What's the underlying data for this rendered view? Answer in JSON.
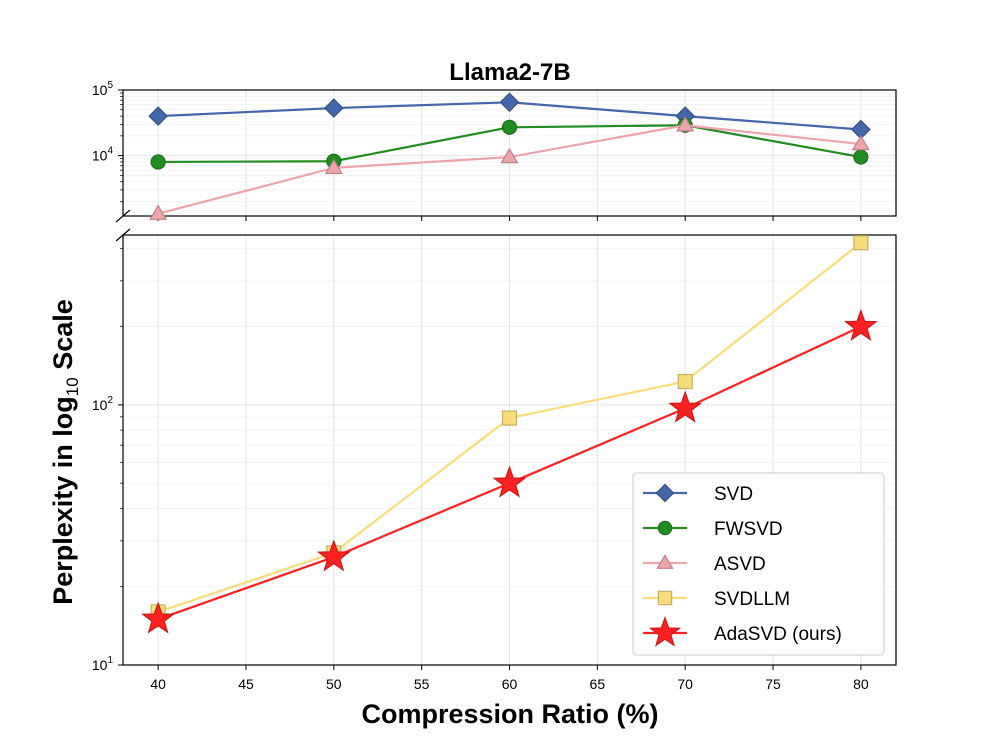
{
  "chart_data": {
    "type": "line",
    "title": "Llama2-7B",
    "xlabel": "Compression Ratio (%)",
    "ylabel_prefix": "Perplexity in log",
    "ylabel_sub": "10",
    "ylabel_suffix": " Scale",
    "x": [
      40,
      50,
      60,
      70,
      80
    ],
    "x_ticks": [
      "40",
      "45",
      "50",
      "55",
      "60",
      "65",
      "70",
      "75",
      "80"
    ],
    "xlim": [
      38,
      82
    ],
    "y_scale": "log",
    "broken_axis": {
      "top_ylim": [
        1200,
        100000
      ],
      "bottom_ylim": [
        10,
        450
      ],
      "top_tick_labels": [
        {
          "base": "10",
          "exp": "5"
        },
        {
          "base": "10",
          "exp": "4"
        }
      ],
      "bottom_tick_labels": [
        {
          "base": "10",
          "exp": "2"
        },
        {
          "base": "10",
          "exp": "1"
        }
      ]
    },
    "series": [
      {
        "name": "SVD",
        "values": [
          40000,
          53000,
          65000,
          40000,
          25000
        ],
        "color": "#4466aa",
        "marker": "diamond"
      },
      {
        "name": "FWSVD",
        "values": [
          8000,
          8200,
          27000,
          29000,
          9500
        ],
        "color": "#228b22",
        "marker": "circle"
      },
      {
        "name": "ASVD",
        "values": [
          1300,
          6500,
          9500,
          29000,
          15000
        ],
        "color": "#eda4ab",
        "marker": "triangle"
      },
      {
        "name": "SVDLLM",
        "values": [
          16,
          27,
          89,
          123,
          420
        ],
        "color": "#f8dd7a",
        "marker": "square"
      },
      {
        "name": "AdaSVD (ours)",
        "values": [
          15,
          26,
          50,
          97,
          200
        ],
        "color": "#ff2020",
        "marker": "star"
      }
    ],
    "legend_position": "lower-right"
  }
}
